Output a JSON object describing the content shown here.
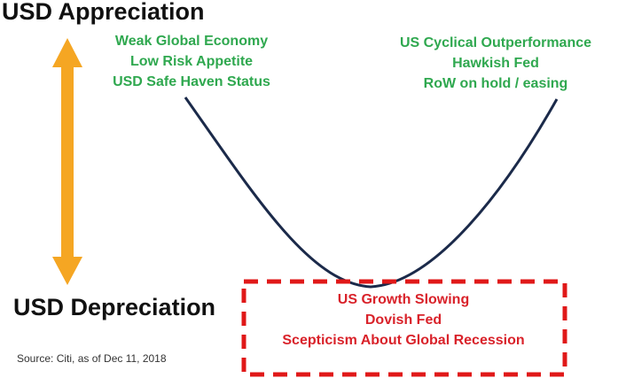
{
  "top_label": "USD Appreciation",
  "bottom_label": "USD Depreciation",
  "left_scenario": {
    "lines": [
      "Weak Global Economy",
      "Low Risk Appetite",
      "USD Safe Haven Status"
    ]
  },
  "right_scenario": {
    "lines": [
      "US Cyclical Outperformance",
      "Hawkish Fed",
      "RoW on hold / easing"
    ]
  },
  "bottom_scenario": {
    "lines": [
      "US Growth Slowing",
      "Dovish Fed",
      "Scepticism About Global Recession"
    ]
  },
  "source": "Source: Citi, as of Dec 11, 2018",
  "colors": {
    "heading": "#111111",
    "scenario_positive": "#2fa84f",
    "scenario_negative": "#d9222a",
    "curve": "#1b2a4a",
    "arrow": "#f5a623",
    "dashed_box": "#e01818"
  }
}
